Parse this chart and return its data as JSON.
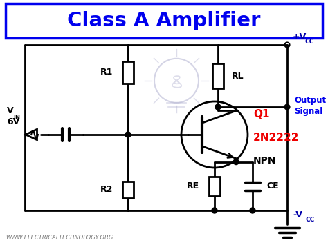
{
  "title": "Class A Amplifier",
  "title_color": "#0000EE",
  "title_box_color": "#0000EE",
  "background_color": "#FFFFFF",
  "wire_color": "#000000",
  "transistor_label_color": "#EE0000",
  "output_label_color": "#0000EE",
  "vcc_color": "#0000AA",
  "r1_label": "R1",
  "r2_label": "R2",
  "rl_label": "RL",
  "re_label": "RE",
  "ce_label": "CE",
  "q1_label": "Q1",
  "q1_part": "2N2222",
  "q1_type": "NPN",
  "output_label": "Output\nSignal",
  "vin_label": "V",
  "vin_sub": "IN",
  "vin_val": "6V",
  "website": "WWW.ELECTRICALTECHNOLOGY.ORG",
  "figsize": [
    4.74,
    3.55
  ],
  "dpi": 100
}
